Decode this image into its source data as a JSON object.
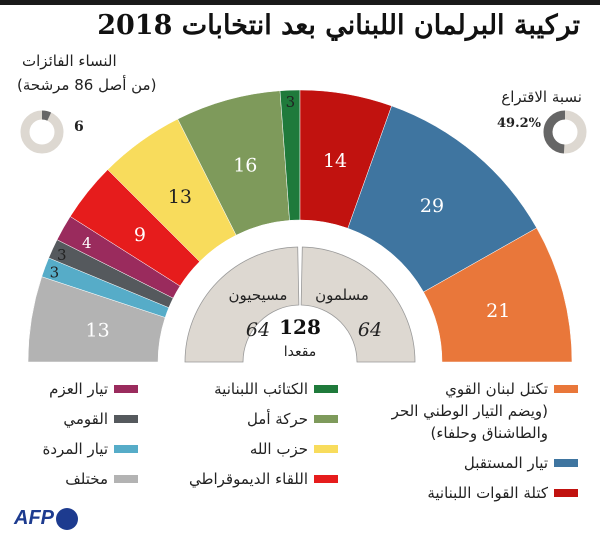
{
  "title": "تركيبة البرلمان اللبناني بعد انتخابات 2018",
  "chart_data": {
    "type": "pie",
    "shape": "semicircle-donut",
    "title": "تركيبة البرلمان اللبناني بعد انتخابات 2018",
    "categories": [
      "مختلف",
      "تيار المردة",
      "القومي",
      "تيار العزم",
      "اللقاء الديموقراطي",
      "حزب الله",
      "حركة أمل",
      "الكتائب اللبنانية",
      "كتلة القوات اللبنانية",
      "تيار المستقبل",
      "تكتل لبنان القوي"
    ],
    "values": [
      13,
      3,
      3,
      4,
      9,
      13,
      16,
      3,
      14,
      29,
      21
    ],
    "colors": [
      "#b3b3b3",
      "#56acc8",
      "#55595d",
      "#9a2b5d",
      "#e61c1c",
      "#f8dc5c",
      "#7e9a5b",
      "#1f7a3b",
      "#c1120f",
      "#3f75a0",
      "#e9773a"
    ],
    "total": {
      "value": "128",
      "label": "مقعدا"
    },
    "inner": [
      {
        "name": "مسيحيون",
        "value": 64
      },
      {
        "name": "مسلمون",
        "value": 64
      }
    ],
    "women": {
      "title": "النساء الفائزات",
      "subtitle": "(من أصل 86 مرشحة)",
      "value": 6,
      "total": 86,
      "label": "6"
    },
    "turnout": {
      "title": "نسبة الاقتراع",
      "value": 49.2,
      "label": "49.2%"
    }
  },
  "legend": {
    "col1": [
      {
        "label": "تكتل لبنان القوي",
        "note": "(ويضم التيار الوطني الحر والطاشناق وحلفاء)",
        "color": "#e9773a"
      },
      {
        "label": "تيار المستقبل",
        "color": "#3f75a0"
      },
      {
        "label": "كتلة القوات اللبنانية",
        "color": "#c1120f"
      }
    ],
    "col2": [
      {
        "label": "الكتائب اللبنانية",
        "color": "#1f7a3b"
      },
      {
        "label": "حركة أمل",
        "color": "#7e9a5b"
      },
      {
        "label": "حزب الله",
        "color": "#f8dc5c"
      },
      {
        "label": "اللقاء الديموقراطي",
        "color": "#e61c1c"
      }
    ],
    "col3": [
      {
        "label": "تيار العزم",
        "color": "#9a2b5d"
      },
      {
        "label": "القومي",
        "color": "#55595d"
      },
      {
        "label": "تيار المردة",
        "color": "#56acc8"
      },
      {
        "label": "مختلف",
        "color": "#b3b3b3"
      }
    ]
  },
  "logo": "AFP"
}
